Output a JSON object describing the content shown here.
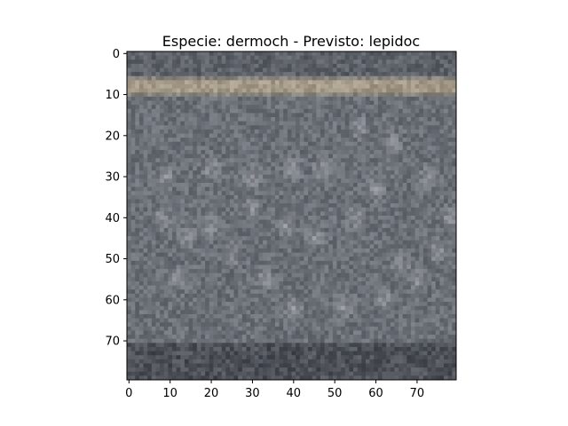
{
  "figure": {
    "title": "Especie: dermoch - Previsto: lepidoc",
    "image": {
      "description_key": "grayscale-texture-rock",
      "grid_size": 80,
      "colors": {
        "base": "#6b6f76",
        "dark": "#3d4047",
        "light": "#a9adb2",
        "band": "#b8a98e"
      }
    },
    "x_axis": {
      "range": [
        0,
        79
      ],
      "ticks": [
        0,
        10,
        20,
        30,
        40,
        50,
        60,
        70
      ],
      "tick_labels": [
        "0",
        "10",
        "20",
        "30",
        "40",
        "50",
        "60",
        "70"
      ]
    },
    "y_axis": {
      "range": [
        0,
        79
      ],
      "inverted": true,
      "ticks": [
        0,
        10,
        20,
        30,
        40,
        50,
        60,
        70
      ],
      "tick_labels": [
        "0",
        "10",
        "20",
        "30",
        "40",
        "50",
        "60",
        "70"
      ]
    }
  }
}
